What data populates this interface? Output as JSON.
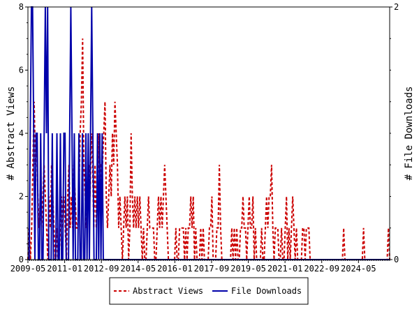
{
  "chart_data": {
    "type": "line",
    "x_tick_labels": [
      "2009-05",
      "2011-01",
      "2012-09",
      "2014-05",
      "2016-01",
      "2017-09",
      "2019-05",
      "2021-01",
      "2022-09",
      "2024-05"
    ],
    "x_range": [
      "2009-05",
      "2025-10"
    ],
    "left_axis": {
      "label": "# Abstract Views",
      "ylim": [
        0,
        8
      ],
      "ticks": [
        "0",
        "2",
        "4",
        "6",
        "8"
      ]
    },
    "right_axis": {
      "label": "# File Downloads",
      "ylim": [
        0,
        2
      ],
      "ticks": [
        "0",
        "2"
      ]
    },
    "grid": false,
    "legend_placement": "bottom-center",
    "series": [
      {
        "name": "Abstract Views",
        "axis": "left",
        "color": "#cc0000",
        "line_style": "dashed",
        "values": [
          0,
          1,
          0,
          1,
          3,
          5,
          3,
          4,
          2,
          1,
          2,
          1,
          2,
          3,
          2,
          1,
          0,
          2,
          1,
          3,
          2,
          1,
          0,
          1,
          0,
          0,
          1,
          2,
          1,
          2,
          1,
          0,
          2,
          3,
          1,
          2,
          1,
          3,
          2,
          1,
          1,
          2,
          4,
          5,
          7,
          3,
          2,
          1,
          2,
          3,
          2,
          4,
          3,
          1,
          3,
          1,
          2,
          4,
          2,
          3,
          3,
          4,
          5,
          2,
          1,
          2,
          3,
          2,
          4,
          3,
          5,
          4,
          3,
          1,
          2,
          1,
          0,
          1,
          2,
          1,
          2,
          0,
          1,
          4,
          2,
          1,
          2,
          1,
          2,
          1,
          2,
          1,
          0,
          1,
          0,
          0,
          1,
          2,
          1,
          1,
          1,
          1,
          0,
          0,
          1,
          2,
          1,
          2,
          1,
          2,
          3,
          2,
          1,
          0,
          0,
          0,
          0,
          0,
          0,
          1,
          0,
          0,
          1,
          1,
          1,
          1,
          0,
          1,
          0,
          1,
          1,
          2,
          1,
          2,
          0,
          1,
          0,
          0,
          0,
          1,
          0,
          1,
          0,
          0,
          0,
          0,
          1,
          1,
          2,
          0,
          0,
          0,
          1,
          1,
          3,
          1,
          0,
          0,
          0,
          0,
          0,
          0,
          0,
          0,
          1,
          0,
          1,
          0,
          1,
          0,
          0,
          1,
          1,
          2,
          1,
          1,
          0,
          1,
          2,
          1,
          1,
          2,
          0,
          1,
          0,
          0,
          0,
          0,
          1,
          0,
          0,
          1,
          2,
          1,
          2,
          2,
          3,
          1,
          0,
          1,
          1,
          1,
          0,
          0,
          1,
          0,
          0,
          1,
          2,
          0,
          1,
          0,
          1,
          2,
          1,
          0,
          1,
          0,
          0,
          0,
          0,
          1,
          1,
          0,
          1,
          1,
          1,
          0,
          0,
          0,
          0,
          0,
          0,
          0,
          0,
          0,
          0,
          0,
          0,
          0,
          0,
          0,
          0,
          0,
          0,
          0,
          0,
          0,
          0,
          0,
          0,
          0,
          0,
          0,
          1,
          0,
          0,
          0,
          0,
          0,
          0,
          0,
          0,
          0,
          0,
          0,
          0,
          0,
          0,
          0,
          1,
          0,
          0,
          0,
          0,
          0,
          0,
          0,
          0,
          0,
          0,
          0,
          0,
          0,
          0,
          0,
          0,
          0,
          0,
          0,
          1,
          0
        ]
      },
      {
        "name": "File Downloads",
        "axis": "right",
        "color": "#0000aa",
        "line_style": "solid",
        "values": [
          0,
          0,
          1,
          2,
          2,
          1,
          0,
          1,
          1,
          0,
          0,
          1,
          0,
          0,
          1,
          2,
          1,
          2,
          0,
          0,
          0,
          1,
          0,
          0,
          0,
          1,
          0,
          0,
          1,
          0,
          0,
          1,
          1,
          0,
          0,
          0,
          1,
          2,
          1,
          0,
          1,
          0,
          0,
          0,
          1,
          0,
          0,
          1,
          0,
          0,
          1,
          0,
          1,
          0,
          1,
          2,
          1,
          0,
          0,
          0,
          1,
          0,
          1,
          0,
          1,
          0,
          0,
          0,
          0,
          0,
          0,
          0,
          0,
          0,
          0,
          0,
          0,
          0,
          0,
          0,
          0,
          0,
          0,
          0,
          0,
          0,
          0,
          0,
          0,
          0,
          0,
          0,
          0,
          0,
          0,
          0,
          0,
          0,
          0,
          0,
          0,
          0,
          0,
          0,
          0,
          0,
          0,
          0,
          0,
          0,
          0,
          0,
          0,
          0,
          0,
          0,
          0,
          0,
          0,
          0,
          0,
          0,
          0,
          0,
          0,
          0,
          0,
          0,
          0,
          0,
          0,
          0,
          0,
          0,
          0,
          0,
          0,
          0,
          0,
          0,
          0,
          0,
          0,
          0,
          0,
          0,
          0,
          0,
          0,
          0,
          0,
          0,
          0,
          0,
          0,
          0,
          0,
          0,
          0,
          0,
          0,
          0,
          0,
          0,
          0,
          0,
          0,
          0,
          0,
          0,
          0,
          0,
          0,
          0,
          0,
          0,
          0,
          0,
          0,
          0,
          0,
          0,
          0,
          0,
          0,
          0,
          0,
          0,
          0,
          0,
          0,
          0,
          0,
          0,
          0,
          0,
          0,
          0,
          0,
          0,
          0,
          0,
          0,
          0,
          0,
          0,
          0,
          0,
          0,
          0,
          0,
          0,
          0,
          0,
          0,
          0,
          0,
          0,
          0,
          0,
          0,
          0,
          0,
          0,
          0,
          0,
          0,
          0,
          0,
          0,
          0,
          0,
          0,
          0,
          0,
          0,
          0,
          0,
          0,
          0,
          0,
          0,
          0,
          0,
          0,
          0,
          0,
          0,
          0,
          0,
          0,
          0,
          0,
          0,
          0,
          0,
          0,
          0,
          0,
          0,
          0,
          0,
          0,
          0,
          0,
          0,
          0,
          0,
          0,
          0,
          0,
          0,
          0,
          0,
          0,
          0,
          0,
          0,
          0,
          0,
          0,
          0,
          0,
          0,
          0,
          0,
          0,
          0,
          0,
          0,
          0,
          0,
          0,
          0,
          0,
          0,
          0,
          0,
          0,
          0,
          0,
          0,
          0,
          0,
          0,
          0,
          0,
          0,
          0,
          0,
          0,
          0,
          0
        ]
      }
    ]
  }
}
